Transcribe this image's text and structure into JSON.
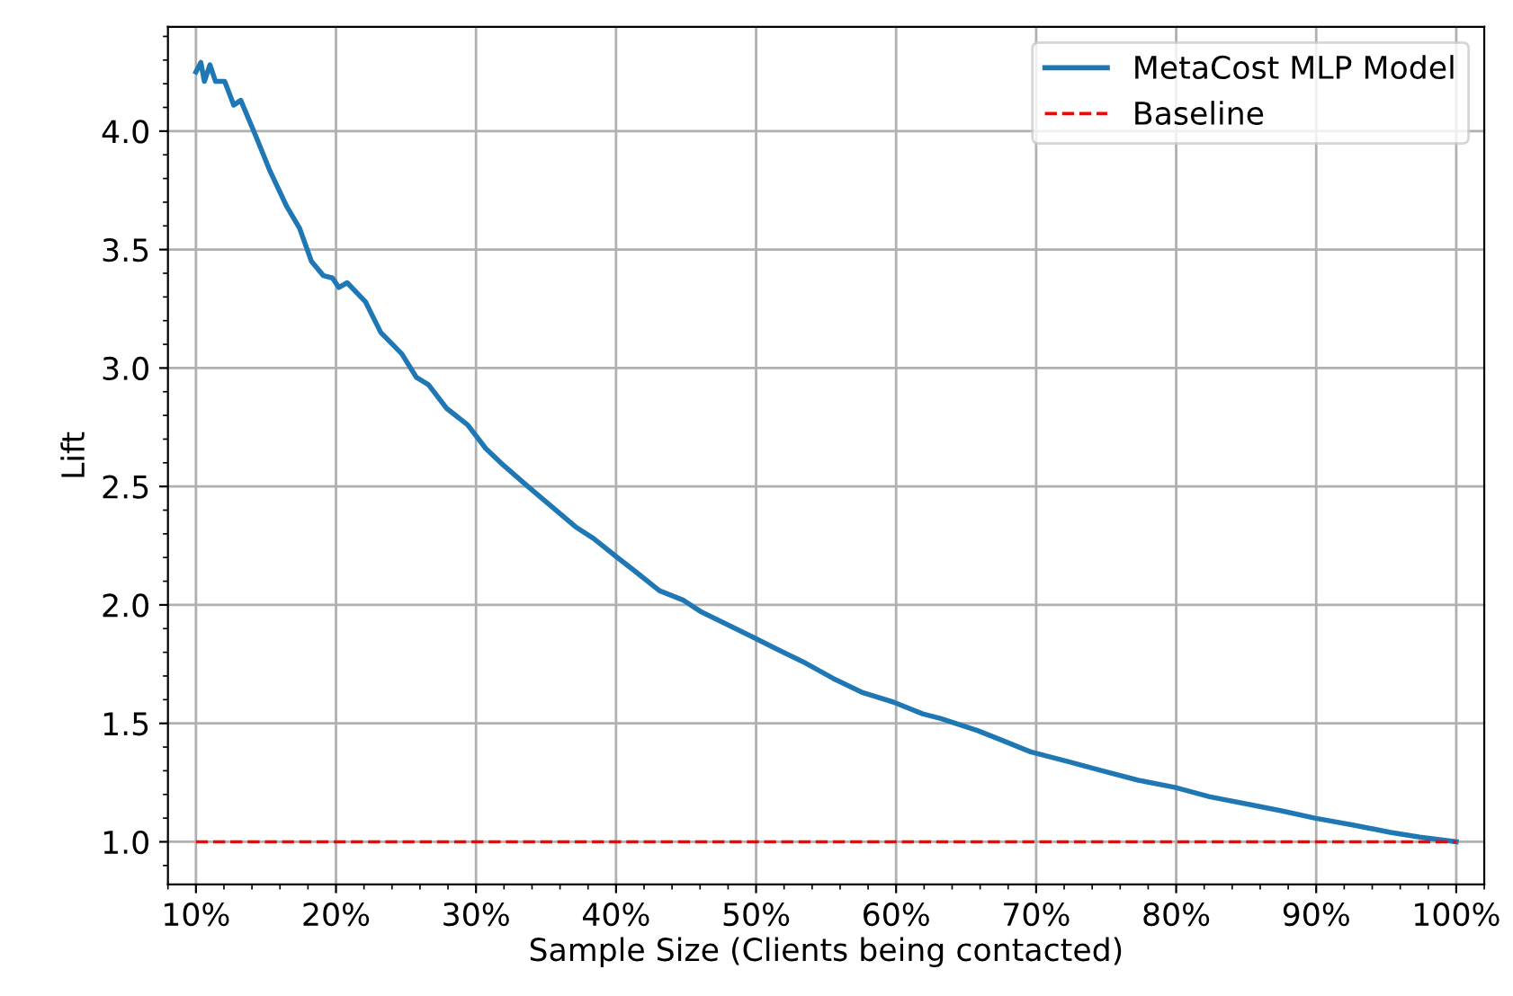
{
  "chart_data": {
    "type": "line",
    "xlabel": "Sample Size (Clients being contacted)",
    "ylabel": "Lift",
    "xlim": [
      8,
      102
    ],
    "ylim": [
      0.82,
      4.44
    ],
    "xticks": [
      {
        "value": 10,
        "label": "10%"
      },
      {
        "value": 20,
        "label": "20%"
      },
      {
        "value": 30,
        "label": "30%"
      },
      {
        "value": 40,
        "label": "40%"
      },
      {
        "value": 50,
        "label": "50%"
      },
      {
        "value": 60,
        "label": "60%"
      },
      {
        "value": 70,
        "label": "70%"
      },
      {
        "value": 80,
        "label": "80%"
      },
      {
        "value": 90,
        "label": "90%"
      },
      {
        "value": 100,
        "label": "100%"
      }
    ],
    "yticks": [
      {
        "value": 1,
        "label": "1.0"
      },
      {
        "value": 1.5,
        "label": "1.5"
      },
      {
        "value": 2,
        "label": "2.0"
      },
      {
        "value": 2.5,
        "label": "2.5"
      },
      {
        "value": 3,
        "label": "3.0"
      },
      {
        "value": 3.5,
        "label": "3.5"
      },
      {
        "value": 4,
        "label": "4.0"
      }
    ],
    "grid": true,
    "legend": "top right",
    "marker": "none",
    "series": [
      {
        "name": "MetaCost MLP Model",
        "color": "#1f77b4",
        "line_style": "solid",
        "x": [
          10.0,
          10.35,
          10.6,
          11.0,
          11.4,
          12.05,
          12.7,
          13.2,
          14.2,
          15.3,
          16.5,
          17.4,
          18.25,
          19.1,
          19.75,
          20.2,
          20.8,
          22.1,
          23.2,
          24.7,
          25.75,
          26.6,
          27.9,
          29.4,
          30.7,
          31.95,
          33.7,
          37.1,
          38.4,
          40.1,
          41.4,
          43.1,
          44.8,
          46.1,
          48.2,
          49.9,
          51.6,
          53.35,
          55.5,
          57.6,
          59.8,
          61.9,
          63.2,
          65.8,
          67.5,
          69.6,
          72.2,
          74.7,
          77.3,
          79.9,
          82.4,
          85.0,
          87.6,
          89.9,
          92.7,
          95.3,
          97.4,
          100
        ],
        "values": [
          4.25,
          4.29,
          4.21,
          4.28,
          4.21,
          4.21,
          4.11,
          4.13,
          3.99,
          3.83,
          3.68,
          3.59,
          3.45,
          3.39,
          3.38,
          3.34,
          3.36,
          3.28,
          3.15,
          3.06,
          2.96,
          2.93,
          2.83,
          2.76,
          2.66,
          2.59,
          2.5,
          2.33,
          2.28,
          2.2,
          2.14,
          2.06,
          2.02,
          1.97,
          1.91,
          1.86,
          1.81,
          1.76,
          1.69,
          1.63,
          1.59,
          1.54,
          1.52,
          1.47,
          1.43,
          1.38,
          1.34,
          1.3,
          1.26,
          1.23,
          1.19,
          1.16,
          1.13,
          1.1,
          1.07,
          1.04,
          1.02,
          1.0
        ]
      },
      {
        "name": "Baseline",
        "color": "#ff0000",
        "line_style": "dashed",
        "x": [
          10,
          100
        ],
        "values": [
          1,
          1
        ]
      }
    ]
  }
}
